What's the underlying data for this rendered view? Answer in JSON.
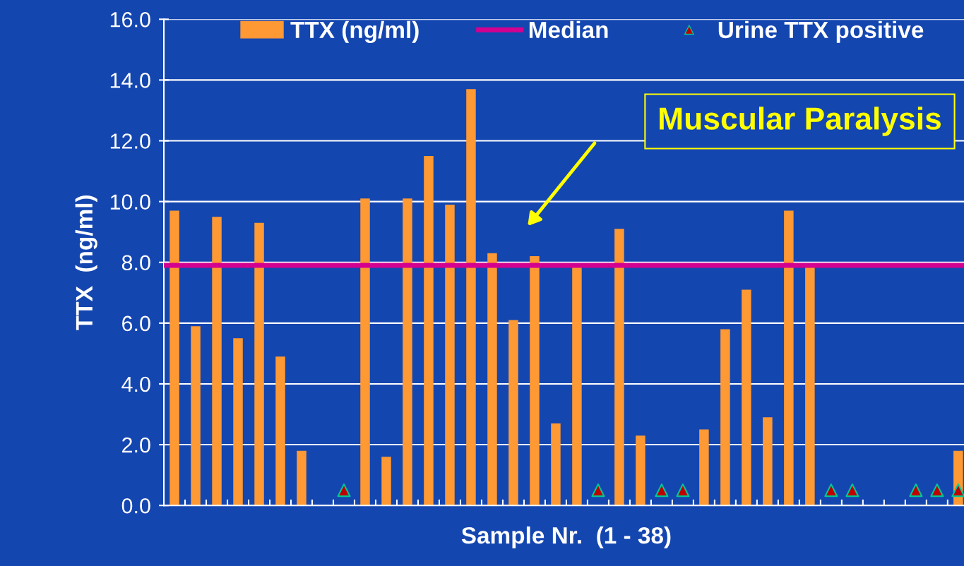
{
  "chart_data": {
    "type": "bar",
    "xlabel": "Sample Nr.  (1 - 38)",
    "ylabel": "TTX  (ng/ml)",
    "categories": [
      null,
      null,
      null,
      null,
      null,
      null,
      null,
      null,
      null,
      null,
      null,
      null,
      null,
      null,
      null,
      null,
      null,
      null,
      null,
      null,
      null,
      null,
      null,
      null,
      null,
      null,
      null,
      null,
      null,
      null,
      null,
      null,
      null,
      null,
      null,
      null,
      null,
      null
    ],
    "series": [
      {
        "name": "TTX (ng/ml)",
        "color": "#ff9933",
        "values": [
          9.7,
          5.9,
          9.5,
          5.5,
          9.3,
          4.9,
          1.8,
          null,
          null,
          10.1,
          1.6,
          10.1,
          11.5,
          9.9,
          13.7,
          8.3,
          6.1,
          8.2,
          2.7,
          7.9,
          null,
          9.1,
          2.3,
          null,
          null,
          2.5,
          5.8,
          7.1,
          2.9,
          9.7,
          7.9,
          null,
          null,
          null,
          null,
          null,
          null,
          1.8
        ]
      },
      {
        "name": "Urine TTX positive",
        "type": "scatter",
        "color": "#c00000",
        "marker": "triangle",
        "values": [
          null,
          null,
          null,
          null,
          null,
          null,
          null,
          null,
          0.5,
          null,
          null,
          null,
          null,
          null,
          null,
          null,
          null,
          null,
          null,
          null,
          0.5,
          null,
          null,
          0.5,
          0.5,
          null,
          null,
          null,
          null,
          null,
          null,
          0.5,
          0.5,
          null,
          null,
          0.5,
          0.5,
          0.5
        ]
      }
    ],
    "ref_lines": [
      {
        "axis": "y",
        "value": 7.9,
        "label": "Median",
        "color": "#d4008f",
        "line_style": "solid"
      }
    ],
    "annotations": [
      "Muscular Paralysis"
    ],
    "ylim": [
      0,
      16
    ],
    "yticks": [
      {
        "value": 0,
        "label": "0.0"
      },
      {
        "value": 2,
        "label": "2.0"
      },
      {
        "value": 4,
        "label": "4.0"
      },
      {
        "value": 6,
        "label": "6.0"
      },
      {
        "value": 8,
        "label": "8.0"
      },
      {
        "value": 10,
        "label": "10.0"
      },
      {
        "value": 12,
        "label": "12.0"
      },
      {
        "value": 14,
        "label": "14.0"
      },
      {
        "value": 16,
        "label": "16.0"
      }
    ],
    "grid": "y",
    "legend": "top"
  }
}
